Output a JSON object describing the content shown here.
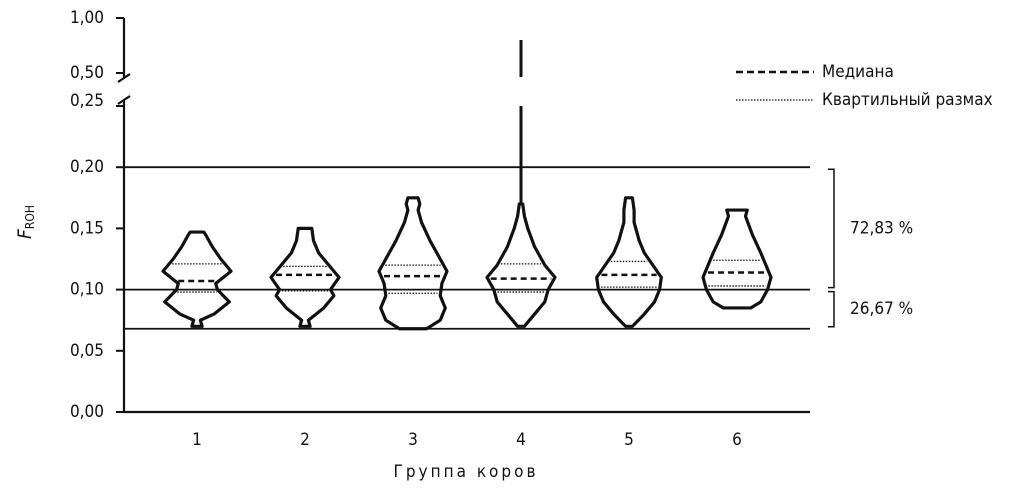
{
  "chart_data": {
    "type": "violin",
    "y_label": {
      "main": "F",
      "sub": "ROH"
    },
    "x_label": "Группа коров",
    "categories": [
      "1",
      "2",
      "3",
      "4",
      "5",
      "6"
    ],
    "ylim": [
      0,
      1
    ],
    "y_break": [
      0.25,
      0.5
    ],
    "yticks": [
      {
        "value": 0,
        "label": "0,00"
      },
      {
        "value": 0.05,
        "label": "0,05"
      },
      {
        "value": 0.1,
        "label": "0,10"
      },
      {
        "value": 0.15,
        "label": "0,15"
      },
      {
        "value": 0.2,
        "label": "0,20"
      },
      {
        "value": 0.25,
        "label": "0,25"
      },
      {
        "value": 0.5,
        "label": "0,50"
      },
      {
        "value": 1,
        "label": "1,00"
      }
    ],
    "legend": {
      "median": "Медиана",
      "quartile": "Квартильный размах"
    },
    "hlines": [
      0.2,
      0.1,
      0.068
    ],
    "annotations": [
      {
        "label": "72,83 %",
        "from": 0.1,
        "to": 0.2
      },
      {
        "label": "26,67 %",
        "from": 0.068,
        "to": 0.1
      }
    ],
    "groups": [
      {
        "median": 0.107,
        "q1": 0.098,
        "q3": 0.121,
        "profile_y": [
          0.07,
          0.075,
          0.08,
          0.09,
          0.1,
          0.105,
          0.115,
          0.125,
          0.135,
          0.145,
          0.147
        ],
        "profile_w": [
          0.15,
          0.1,
          0.5,
          0.95,
          0.6,
          0.55,
          1.0,
          0.7,
          0.45,
          0.25,
          0.2
        ]
      },
      {
        "median": 0.112,
        "q1": 0.099,
        "q3": 0.119,
        "profile_y": [
          0.07,
          0.075,
          0.085,
          0.095,
          0.1,
          0.11,
          0.12,
          0.13,
          0.14,
          0.15
        ],
        "profile_w": [
          0.15,
          0.1,
          0.55,
          0.85,
          0.75,
          1.0,
          0.7,
          0.4,
          0.25,
          0.2
        ]
      },
      {
        "median": 0.111,
        "q1": 0.097,
        "q3": 0.12,
        "profile_y": [
          0.068,
          0.075,
          0.085,
          0.095,
          0.105,
          0.115,
          0.125,
          0.14,
          0.155,
          0.165,
          0.17,
          0.175
        ],
        "profile_w": [
          0.4,
          0.8,
          0.95,
          0.8,
          0.85,
          1.0,
          0.8,
          0.5,
          0.25,
          0.15,
          0.2,
          0.15
        ]
      },
      {
        "median": 0.109,
        "q1": 0.098,
        "q3": 0.121,
        "max": 0.8,
        "profile_y": [
          0.07,
          0.08,
          0.09,
          0.1,
          0.11,
          0.12,
          0.135,
          0.15,
          0.16,
          0.17
        ],
        "profile_w": [
          0.1,
          0.4,
          0.7,
          0.8,
          1.0,
          0.7,
          0.4,
          0.2,
          0.1,
          0.05
        ]
      },
      {
        "median": 0.112,
        "q1": 0.102,
        "q3": 0.123,
        "profile_y": [
          0.07,
          0.08,
          0.09,
          0.1,
          0.11,
          0.12,
          0.13,
          0.14,
          0.155,
          0.165,
          0.175
        ],
        "profile_w": [
          0.1,
          0.45,
          0.75,
          0.9,
          0.95,
          0.7,
          0.45,
          0.3,
          0.15,
          0.15,
          0.1
        ]
      },
      {
        "median": 0.114,
        "q1": 0.103,
        "q3": 0.124,
        "profile_y": [
          0.085,
          0.09,
          0.1,
          0.11,
          0.12,
          0.13,
          0.145,
          0.16,
          0.165
        ],
        "profile_w": [
          0.4,
          0.7,
          0.9,
          1.0,
          0.85,
          0.7,
          0.45,
          0.25,
          0.3
        ]
      }
    ]
  }
}
